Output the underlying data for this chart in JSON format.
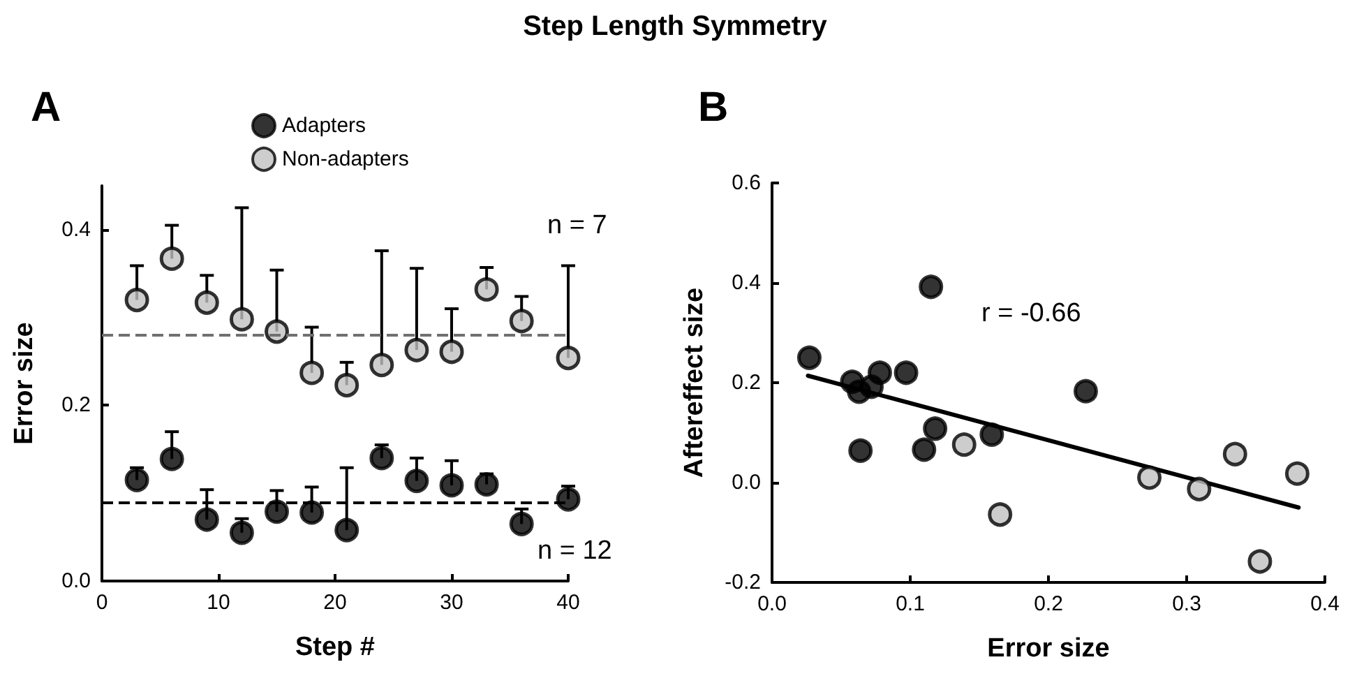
{
  "chart_data": [
    {
      "type": "scatter",
      "title": "Step Length Symmetry",
      "subtitle": "A",
      "xlabel": "Step #",
      "ylabel": "Error size",
      "x": [
        3,
        6,
        9,
        12,
        15,
        18,
        21,
        24,
        27,
        30,
        33,
        36,
        40
      ],
      "xlim": [
        0,
        40
      ],
      "xticks": [
        0,
        10,
        20,
        30,
        40
      ],
      "ylim": [
        0,
        0.45
      ],
      "yticks": [
        {
          "value": 0,
          "label": "0.0"
        },
        {
          "value": 0.2,
          "label": "0.2"
        },
        {
          "value": 0.4,
          "label": "0.4"
        }
      ],
      "grid": false,
      "legend": "top",
      "marker": "circle",
      "series": [
        {
          "name": "Adapters",
          "color": "#000000",
          "values": [
            0.115,
            0.139,
            0.07,
            0.055,
            0.079,
            0.078,
            0.058,
            0.14,
            0.114,
            0.109,
            0.11,
            0.065,
            0.093
          ],
          "errors": [
            [
              0.115,
              0.129
            ],
            [
              0.139,
              0.17
            ],
            [
              0.07,
              0.104
            ],
            [
              0.055,
              0.071
            ],
            [
              0.079,
              0.103
            ],
            [
              0.078,
              0.107
            ],
            [
              0.058,
              0.129
            ],
            [
              0.14,
              0.155
            ],
            [
              0.114,
              0.14
            ],
            [
              0.109,
              0.137
            ],
            [
              0.11,
              0.122
            ],
            [
              0.065,
              0.082
            ],
            [
              0.093,
              0.108
            ]
          ]
        },
        {
          "name": "Non-adapters",
          "color": "#c0c0c0",
          "values": [
            0.32,
            0.367,
            0.317,
            0.298,
            0.284,
            0.237,
            0.223,
            0.246,
            0.263,
            0.261,
            0.332,
            0.296,
            0.254
          ],
          "errors": [
            [
              0.32,
              0.359
            ],
            [
              0.367,
              0.405
            ],
            [
              0.317,
              0.348
            ],
            [
              0.298,
              0.425
            ],
            [
              0.284,
              0.354
            ],
            [
              0.237,
              0.289
            ],
            [
              0.223,
              0.249
            ],
            [
              0.246,
              0.376
            ],
            [
              0.263,
              0.356
            ],
            [
              0.261,
              0.31
            ],
            [
              0.332,
              0.357
            ],
            [
              0.296,
              0.324
            ],
            [
              0.254,
              0.359
            ]
          ]
        }
      ],
      "ref_lines": [
        {
          "axis": "y",
          "value": 0.28,
          "color": "#707070",
          "line_style": "dashed"
        },
        {
          "axis": "y",
          "value": 0.09,
          "color": "#000000",
          "line_style": "dashed"
        }
      ],
      "annotations": [
        "n = 7",
        "n = 12"
      ]
    },
    {
      "type": "scatter",
      "subtitle": "B",
      "xlabel": "Error size",
      "ylabel": "Aftereffect size",
      "xlim": [
        0,
        0.4
      ],
      "xticks": [
        {
          "value": 0,
          "label": "0.0"
        },
        {
          "value": 0.1,
          "label": "0.1"
        },
        {
          "value": 0.2,
          "label": "0.2"
        },
        {
          "value": 0.3,
          "label": "0.3"
        },
        {
          "value": 0.4,
          "label": "0.4"
        }
      ],
      "ylim": [
        -0.2,
        0.6
      ],
      "yticks": [
        {
          "value": -0.2,
          "label": "-0.2"
        },
        {
          "value": 0,
          "label": "0.0"
        },
        {
          "value": 0.2,
          "label": "0.2"
        },
        {
          "value": 0.4,
          "label": "0.4"
        },
        {
          "value": 0.6,
          "label": "0.6"
        }
      ],
      "grid": false,
      "legend": false,
      "marker": "circle",
      "series": [
        {
          "color": "#000000",
          "x": [
            0.027,
            0.058,
            0.063,
            0.072,
            0.078,
            0.097,
            0.115,
            0.064,
            0.11,
            0.118,
            0.159,
            0.227
          ],
          "values": [
            0.25,
            0.202,
            0.182,
            0.192,
            0.22,
            0.22,
            0.392,
            0.064,
            0.066,
            0.108,
            0.096,
            0.183
          ]
        },
        {
          "color": "#c0c0c0",
          "x": [
            0.139,
            0.165,
            0.273,
            0.309,
            0.335,
            0.353,
            0.38
          ],
          "values": [
            0.076,
            -0.064,
            0.01,
            -0.013,
            0.057,
            -0.158,
            0.018
          ]
        },
        {
          "type": "line",
          "color": "#000000",
          "marker": "none",
          "line_style": "solid",
          "x": [
            0.026,
            0.381
          ],
          "values": [
            0.214,
            -0.05
          ]
        }
      ],
      "annotations": [
        "r = -0.66"
      ]
    }
  ]
}
